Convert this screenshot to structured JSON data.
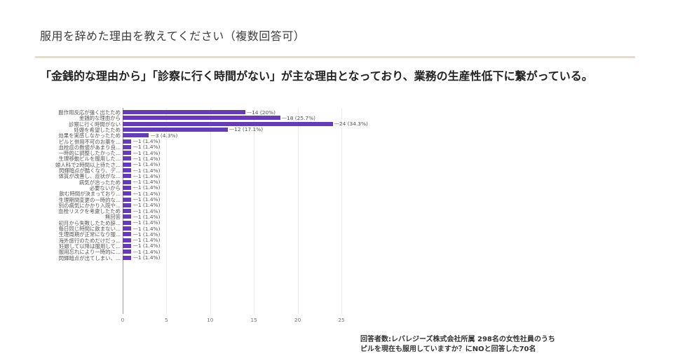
{
  "page": {
    "title": "服用を辞めた理由を教えてください（複数回答可）",
    "headline": "「金銭的な理由から」「診察に行く時間がない」が主な理由となっており、業務の生産性低下に繋がっている。",
    "note_line1": "回答者数:レバレジーズ株式会社所属 298名の女性社員のうち",
    "note_line2": "ピルを現在も服用していますか？にNOと回答した70名"
  },
  "colors": {
    "bar": "#673ab7",
    "divider": "#e4dbd1"
  },
  "chart_data": {
    "type": "bar",
    "orientation": "horizontal",
    "title": "服用を辞めた理由を教えてください（複数回答可）",
    "xlabel": "",
    "ylabel": "",
    "xlim": [
      0,
      25
    ],
    "x_ticks": [
      "0",
      "5",
      "10",
      "15",
      "20",
      "25"
    ],
    "grid": true,
    "legend": "none",
    "categories": [
      "副作用反応が強く出たため",
      "金銭的な理由から",
      "診察に行く時間がない",
      "妊娠を希望したため",
      "効果を実感しなかったため",
      "ピルと併用不可のお薬を...",
      "血栓症の数値があまり良...",
      "一時的に調整したかった...",
      "生理移動ピルを服用した...",
      "婦人科で2時間以上待たさ...",
      "閃輝暗点が酷くなり、デ...",
      "体質が改善し、症状がな...",
      "病気が治ったため",
      "必要ないから",
      "飲む時間が決まっており...",
      "生理期間変更の一時的な...",
      "別の病気にかかり入院や...",
      "血栓リスクを考慮したため",
      "無回答",
      "初月から失敗したため辞...",
      "毎日同じ時間に飲まない...",
      "生理周期が正常になり服...",
      "海外旅行のためだけだっ...",
      "妊娠して以降は服用して...",
      "服用忘れにより一時的に...",
      "閃輝暗点が出てしまい、..."
    ],
    "values": [
      14,
      18,
      24,
      12,
      3,
      1,
      1,
      1,
      1,
      1,
      1,
      1,
      1,
      1,
      1,
      1,
      1,
      1,
      1,
      1,
      1,
      1,
      1,
      1,
      1,
      1
    ],
    "value_labels": [
      "14 (20%)",
      "18 (25.7%)",
      "24 (34.3%)",
      "12 (17.1%)",
      "3 (4.3%)",
      "1 (1.4%)",
      "1 (1.4%)",
      "1 (1.4%)",
      "1 (1.4%)",
      "1 (1.4%)",
      "1 (1.4%)",
      "1 (1.4%)",
      "1 (1.4%)",
      "1 (1.4%)",
      "1 (1.4%)",
      "1 (1.4%)",
      "1 (1.4%)",
      "1 (1.4%)",
      "1 (1.4%)",
      "1 (1.4%)",
      "1 (1.4%)",
      "1 (1.4%)",
      "1 (1.4%)",
      "1 (1.4%)",
      "1 (1.4%)",
      "1 (1.4%)"
    ]
  }
}
